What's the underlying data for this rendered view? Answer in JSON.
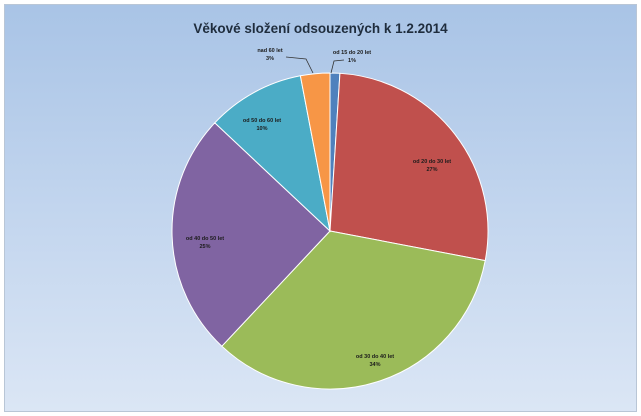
{
  "chart_data": {
    "type": "pie",
    "title": "Věkové složení odsouzených k 1.2.2014",
    "slices": [
      {
        "label": "od 15 do 20 let",
        "value_label": "1%",
        "value": 1,
        "color": "#4f81bd"
      },
      {
        "label": "od 20 do 30 let",
        "value_label": "27%",
        "value": 27,
        "color": "#c0504d"
      },
      {
        "label": "od 30 do 40 let",
        "value_label": "34%",
        "value": 34,
        "color": "#9bbb59"
      },
      {
        "label": "od 40 do 50 let",
        "value_label": "25%",
        "value": 25,
        "color": "#8064a2"
      },
      {
        "label": "od 50 do 60 let",
        "value_label": "10%",
        "value": 10,
        "color": "#4bacc6"
      },
      {
        "label": "nad 60 let",
        "value_label": "3%",
        "value": 3,
        "color": "#f79646"
      }
    ],
    "legend": false
  }
}
